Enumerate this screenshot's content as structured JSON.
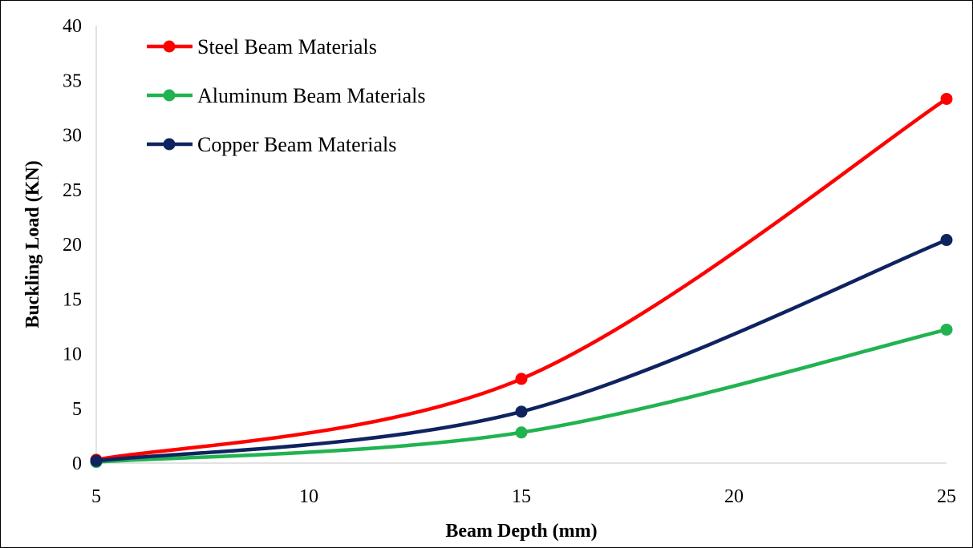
{
  "chart_data": {
    "type": "line",
    "title": "",
    "xlabel": "Beam Depth (mm)",
    "ylabel": "Buckling Load (KN)",
    "xlim": [
      5,
      25
    ],
    "ylim": [
      0,
      40
    ],
    "x_ticks": [
      "5",
      "10",
      "15",
      "20",
      "25"
    ],
    "y_ticks": [
      "0",
      "5",
      "10",
      "15",
      "20",
      "25",
      "30",
      "35",
      "40"
    ],
    "grid": false,
    "legend_position": "top-left",
    "x": [
      5,
      15,
      25
    ],
    "series": [
      {
        "name": "Steel Beam Materials",
        "color": "#ff0000",
        "values": [
          0.3,
          7.7,
          33.3
        ]
      },
      {
        "name": "Aluminum Beam Materials",
        "color": "#21b350",
        "values": [
          0.1,
          2.8,
          12.2
        ]
      },
      {
        "name": "Copper Beam Materials",
        "color": "#0e2360",
        "values": [
          0.2,
          4.7,
          20.4
        ]
      }
    ]
  }
}
